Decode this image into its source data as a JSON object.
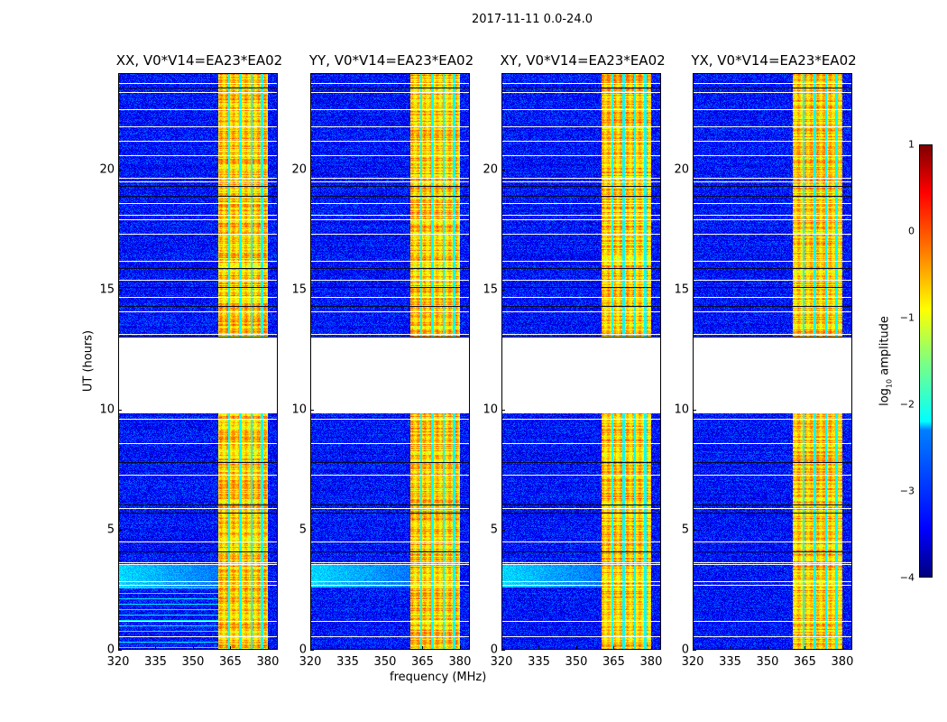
{
  "suptitle": "2017-11-11 0.0-24.0",
  "chart_data": {
    "type": "heatmap",
    "title": "2017-11-11 0.0-24.0",
    "xlabel": "frequency (MHz)",
    "ylabel": "UT (hours)",
    "xlim": [
      320,
      384
    ],
    "ylim": [
      0,
      24
    ],
    "xticks": [
      "320",
      "335",
      "350",
      "365",
      "380"
    ],
    "xtick_values": [
      320,
      335,
      350,
      365,
      380
    ],
    "yticks": [
      "0",
      "5",
      "10",
      "15",
      "20"
    ],
    "ytick_values": [
      0,
      5,
      10,
      15,
      20
    ],
    "panels": [
      {
        "title": "XX, V0*V14=EA23*EA02",
        "id": "xx"
      },
      {
        "title": "YY, V0*V14=EA23*EA02",
        "id": "yy"
      },
      {
        "title": "XY, V0*V14=EA23*EA02",
        "id": "xy"
      },
      {
        "title": "YX, V0*V14=EA23*EA02",
        "id": "yx"
      }
    ],
    "bright_band_mhz": [
      360,
      380
    ],
    "no_data_hours": [
      9.85,
      13.0
    ],
    "background_log_amp": -3.3,
    "band_log_amp": -0.6,
    "colorbar": {
      "label": "log10 amplitude",
      "label_main": "log",
      "label_sub": "10",
      "label_rest": " amplitude",
      "range": [
        -4,
        1
      ],
      "ticks": [
        "1",
        "0",
        "−1",
        "−2",
        "−3",
        "−4"
      ],
      "tick_values": [
        1,
        0,
        -1,
        -2,
        -3,
        -4
      ],
      "colormap": "jet"
    }
  }
}
